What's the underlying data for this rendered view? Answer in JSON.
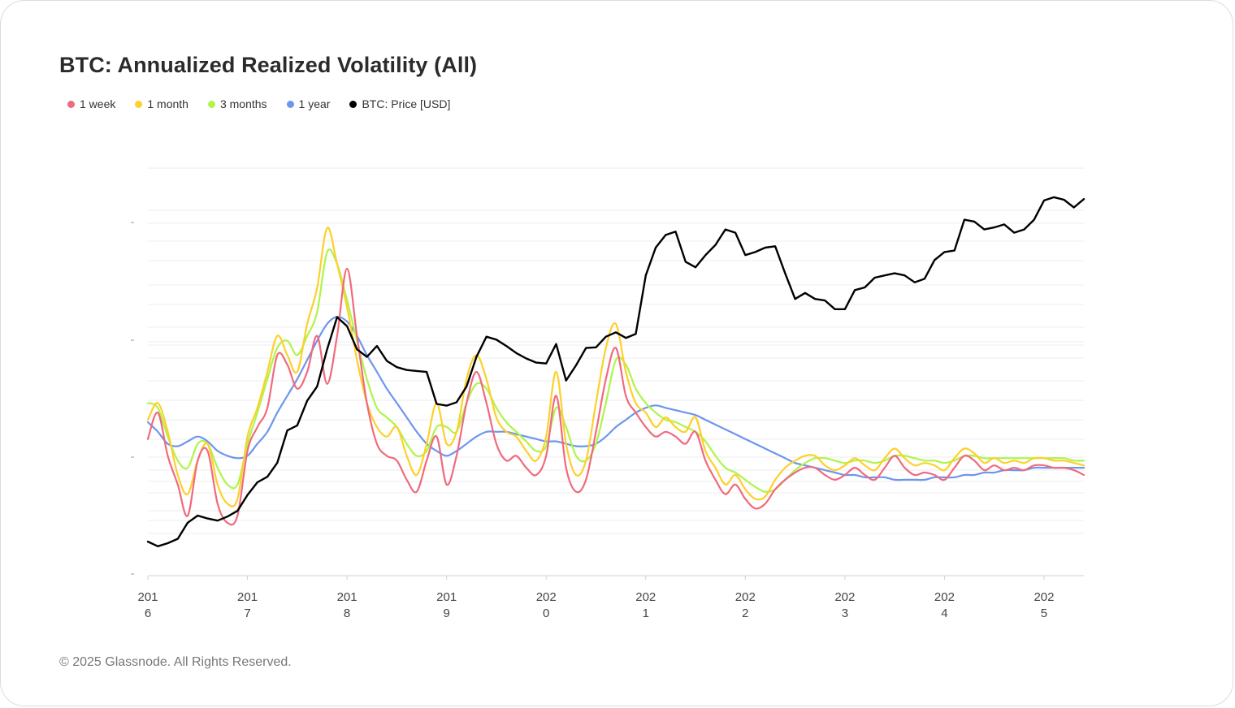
{
  "colors": {
    "week": "#f06a7e",
    "month": "#fdd02a",
    "three_months": "#aef54a",
    "year": "#6d96ed",
    "price": "#000000",
    "grid": "#ececec",
    "axis": "#d0d0d0"
  },
  "chart_data": {
    "type": "line",
    "title": "BTC: Annualized Realized Volatility (All)",
    "x_range": [
      2016.0,
      2025.4
    ],
    "y_range_volatility": [
      0,
      1.7
    ],
    "y_range_price_log10": [
      2.4,
      5.2
    ],
    "x_tick_labels": [
      {
        "top": "201",
        "bottom": "6"
      },
      {
        "top": "201",
        "bottom": "7"
      },
      {
        "top": "201",
        "bottom": "8"
      },
      {
        "top": "201",
        "bottom": "9"
      },
      {
        "top": "202",
        "bottom": "0"
      },
      {
        "top": "202",
        "bottom": "1"
      },
      {
        "top": "202",
        "bottom": "2"
      },
      {
        "top": "202",
        "bottom": "3"
      },
      {
        "top": "202",
        "bottom": "4"
      },
      {
        "top": "202",
        "bottom": "5"
      }
    ],
    "x": [
      2016.0,
      2016.1,
      2016.2,
      2016.3,
      2016.4,
      2016.5,
      2016.6,
      2016.7,
      2016.8,
      2016.9,
      2017.0,
      2017.1,
      2017.2,
      2017.3,
      2017.4,
      2017.5,
      2017.6,
      2017.7,
      2017.8,
      2017.9,
      2018.0,
      2018.1,
      2018.2,
      2018.3,
      2018.4,
      2018.5,
      2018.6,
      2018.7,
      2018.8,
      2018.9,
      2019.0,
      2019.1,
      2019.2,
      2019.3,
      2019.4,
      2019.5,
      2019.6,
      2019.7,
      2019.8,
      2019.9,
      2020.0,
      2020.1,
      2020.2,
      2020.3,
      2020.4,
      2020.5,
      2020.6,
      2020.7,
      2020.8,
      2020.9,
      2021.0,
      2021.1,
      2021.2,
      2021.3,
      2021.4,
      2021.5,
      2021.6,
      2021.7,
      2021.8,
      2021.9,
      2022.0,
      2022.1,
      2022.2,
      2022.3,
      2022.4,
      2022.5,
      2022.6,
      2022.7,
      2022.8,
      2022.9,
      2023.0,
      2023.1,
      2023.2,
      2023.3,
      2023.4,
      2023.5,
      2023.6,
      2023.7,
      2023.8,
      2023.9,
      2024.0,
      2024.1,
      2024.2,
      2024.3,
      2024.4,
      2024.5,
      2024.6,
      2024.7,
      2024.8,
      2024.9,
      2025.0,
      2025.1,
      2025.2,
      2025.3,
      2025.4
    ],
    "series": [
      {
        "name": "1 week",
        "key": "week",
        "values": [
          0.57,
          0.68,
          0.5,
          0.38,
          0.25,
          0.48,
          0.52,
          0.3,
          0.22,
          0.25,
          0.52,
          0.62,
          0.7,
          0.92,
          0.88,
          0.78,
          0.85,
          1.0,
          0.8,
          1.0,
          1.28,
          1.0,
          0.72,
          0.55,
          0.5,
          0.48,
          0.4,
          0.35,
          0.48,
          0.58,
          0.38,
          0.5,
          0.72,
          0.85,
          0.72,
          0.55,
          0.48,
          0.5,
          0.45,
          0.42,
          0.5,
          0.75,
          0.45,
          0.35,
          0.4,
          0.6,
          0.82,
          0.95,
          0.75,
          0.68,
          0.62,
          0.58,
          0.6,
          0.58,
          0.55,
          0.6,
          0.48,
          0.4,
          0.34,
          0.38,
          0.32,
          0.28,
          0.3,
          0.36,
          0.4,
          0.43,
          0.45,
          0.45,
          0.42,
          0.4,
          0.42,
          0.45,
          0.42,
          0.4,
          0.45,
          0.5,
          0.45,
          0.42,
          0.43,
          0.42,
          0.4,
          0.45,
          0.5,
          0.48,
          0.44,
          0.46,
          0.44,
          0.45,
          0.44,
          0.46,
          0.46,
          0.45,
          0.45,
          0.44,
          0.42
        ]
      },
      {
        "name": "1 month",
        "key": "month",
        "values": [
          0.65,
          0.72,
          0.6,
          0.42,
          0.34,
          0.48,
          0.55,
          0.38,
          0.3,
          0.32,
          0.58,
          0.7,
          0.85,
          1.0,
          0.92,
          0.85,
          1.05,
          1.2,
          1.45,
          1.3,
          1.12,
          0.9,
          0.72,
          0.62,
          0.58,
          0.62,
          0.5,
          0.42,
          0.55,
          0.72,
          0.55,
          0.6,
          0.82,
          0.92,
          0.82,
          0.66,
          0.6,
          0.58,
          0.52,
          0.48,
          0.58,
          0.85,
          0.55,
          0.42,
          0.48,
          0.72,
          0.95,
          1.05,
          0.85,
          0.72,
          0.68,
          0.62,
          0.66,
          0.62,
          0.6,
          0.66,
          0.52,
          0.45,
          0.38,
          0.42,
          0.36,
          0.32,
          0.33,
          0.4,
          0.45,
          0.48,
          0.5,
          0.5,
          0.46,
          0.44,
          0.46,
          0.49,
          0.46,
          0.44,
          0.49,
          0.53,
          0.49,
          0.46,
          0.47,
          0.46,
          0.44,
          0.49,
          0.53,
          0.51,
          0.47,
          0.49,
          0.47,
          0.48,
          0.47,
          0.49,
          0.49,
          0.48,
          0.48,
          0.47,
          0.46
        ]
      },
      {
        "name": "3 months",
        "key": "three_months",
        "values": [
          0.72,
          0.7,
          0.58,
          0.48,
          0.45,
          0.55,
          0.55,
          0.45,
          0.38,
          0.38,
          0.55,
          0.68,
          0.82,
          0.95,
          0.98,
          0.92,
          1.0,
          1.1,
          1.35,
          1.3,
          1.15,
          0.98,
          0.82,
          0.7,
          0.66,
          0.62,
          0.55,
          0.5,
          0.52,
          0.62,
          0.62,
          0.6,
          0.72,
          0.8,
          0.78,
          0.7,
          0.64,
          0.6,
          0.56,
          0.52,
          0.54,
          0.7,
          0.62,
          0.5,
          0.48,
          0.55,
          0.72,
          0.9,
          0.88,
          0.78,
          0.72,
          0.68,
          0.65,
          0.64,
          0.62,
          0.6,
          0.56,
          0.5,
          0.45,
          0.43,
          0.4,
          0.37,
          0.35,
          0.36,
          0.4,
          0.44,
          0.47,
          0.49,
          0.49,
          0.48,
          0.47,
          0.48,
          0.48,
          0.47,
          0.48,
          0.5,
          0.5,
          0.49,
          0.48,
          0.48,
          0.47,
          0.48,
          0.5,
          0.5,
          0.49,
          0.49,
          0.49,
          0.49,
          0.49,
          0.49,
          0.49,
          0.49,
          0.49,
          0.48,
          0.48
        ]
      },
      {
        "name": "1 year",
        "key": "year",
        "values": [
          0.64,
          0.6,
          0.55,
          0.54,
          0.56,
          0.58,
          0.56,
          0.52,
          0.5,
          0.49,
          0.5,
          0.55,
          0.6,
          0.68,
          0.75,
          0.82,
          0.9,
          0.98,
          1.05,
          1.08,
          1.06,
          1.0,
          0.92,
          0.85,
          0.78,
          0.72,
          0.66,
          0.6,
          0.55,
          0.52,
          0.5,
          0.52,
          0.55,
          0.58,
          0.6,
          0.6,
          0.6,
          0.59,
          0.58,
          0.57,
          0.56,
          0.56,
          0.55,
          0.54,
          0.54,
          0.55,
          0.58,
          0.62,
          0.65,
          0.68,
          0.7,
          0.71,
          0.7,
          0.69,
          0.68,
          0.67,
          0.65,
          0.63,
          0.61,
          0.59,
          0.57,
          0.55,
          0.53,
          0.51,
          0.49,
          0.47,
          0.46,
          0.45,
          0.44,
          0.43,
          0.42,
          0.42,
          0.41,
          0.41,
          0.41,
          0.4,
          0.4,
          0.4,
          0.4,
          0.41,
          0.41,
          0.41,
          0.42,
          0.42,
          0.43,
          0.43,
          0.44,
          0.44,
          0.44,
          0.45,
          0.45,
          0.45,
          0.45,
          0.45,
          0.45
        ]
      },
      {
        "name": "BTC: Price [USD]",
        "key": "price",
        "axis": "price",
        "values": [
          430,
          400,
          420,
          450,
          580,
          650,
          620,
          600,
          640,
          700,
          900,
          1100,
          1200,
          1500,
          2500,
          2700,
          4000,
          5000,
          9000,
          15000,
          13000,
          9000,
          8000,
          9500,
          7500,
          6800,
          6500,
          6400,
          6300,
          3800,
          3700,
          3900,
          5000,
          8000,
          11000,
          10500,
          9500,
          8500,
          7800,
          7300,
          7200,
          9800,
          5500,
          7000,
          9200,
          9300,
          11000,
          11800,
          10800,
          11500,
          29000,
          45000,
          55000,
          58000,
          36000,
          33000,
          40000,
          47000,
          60000,
          57000,
          40000,
          42000,
          45000,
          46000,
          30000,
          20000,
          22000,
          20000,
          19500,
          17000,
          17000,
          23000,
          24000,
          28000,
          29000,
          30000,
          29000,
          26000,
          27500,
          37000,
          42000,
          43000,
          70000,
          68000,
          60000,
          62000,
          65000,
          57000,
          60000,
          70000,
          95000,
          100000,
          96000,
          85000,
          97000
        ]
      }
    ]
  },
  "page": {
    "title": "BTC: Annualized Realized Volatility (All)",
    "footer": "© 2025 Glassnode. All Rights Reserved."
  },
  "legend": [
    {
      "label": "1 week",
      "color_key": "week"
    },
    {
      "label": "1 month",
      "color_key": "month"
    },
    {
      "label": "3 months",
      "color_key": "three_months"
    },
    {
      "label": "1 year",
      "color_key": "year"
    },
    {
      "label": "BTC: Price [USD]",
      "color_key": "price"
    }
  ]
}
